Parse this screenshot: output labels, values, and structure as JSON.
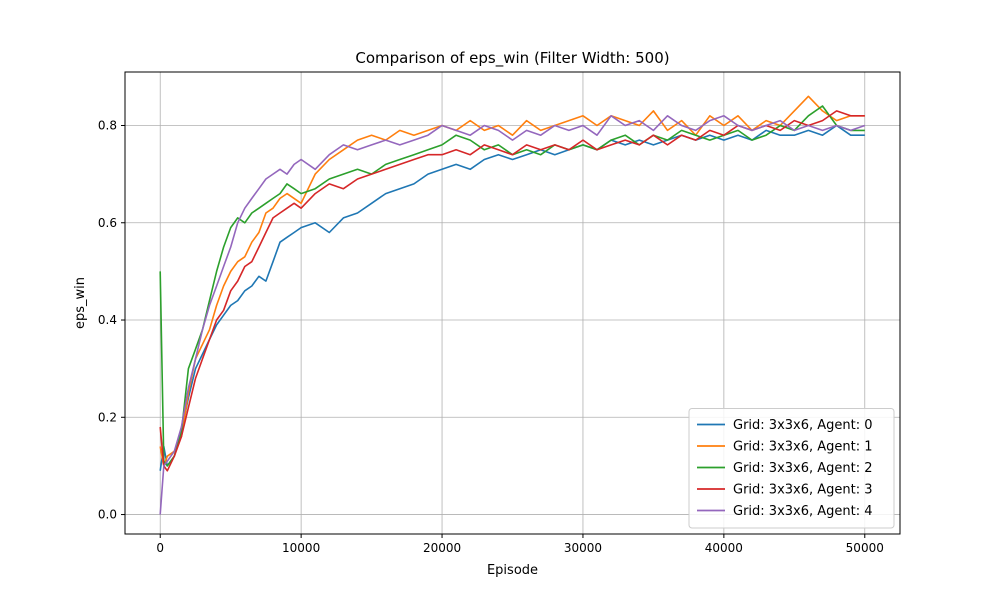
{
  "chart_data": {
    "type": "line",
    "title": "Comparison of eps_win (Filter Width: 500)",
    "xlabel": "Episode",
    "ylabel": "eps_win",
    "xlim": [
      -2500,
      52500
    ],
    "ylim": [
      -0.04,
      0.91
    ],
    "x_ticks": [
      0,
      10000,
      20000,
      30000,
      40000,
      50000
    ],
    "y_ticks": [
      0.0,
      0.2,
      0.4,
      0.6,
      0.8
    ],
    "x_tick_labels": [
      "0",
      "10000",
      "20000",
      "30000",
      "40000",
      "50000"
    ],
    "y_tick_labels": [
      "0.0",
      "0.2",
      "0.4",
      "0.6",
      "0.8"
    ],
    "grid": true,
    "legend_position": "bottom-right",
    "series": [
      {
        "name": "Grid: 3x3x6, Agent: 0",
        "color": "#1f77b4",
        "x": [
          0,
          250,
          500,
          1000,
          1500,
          2000,
          2500,
          3000,
          3500,
          4000,
          4500,
          5000,
          5500,
          6000,
          6500,
          7000,
          7500,
          8000,
          8500,
          9000,
          9500,
          10000,
          11000,
          12000,
          13000,
          14000,
          15000,
          16000,
          17000,
          18000,
          19000,
          20000,
          21000,
          22000,
          23000,
          24000,
          25000,
          26000,
          27000,
          28000,
          29000,
          30000,
          31000,
          32000,
          33000,
          34000,
          35000,
          36000,
          37000,
          38000,
          39000,
          40000,
          41000,
          42000,
          43000,
          44000,
          45000,
          46000,
          47000,
          48000,
          49000,
          50000
        ],
        "y": [
          0.09,
          0.14,
          0.1,
          0.12,
          0.17,
          0.24,
          0.3,
          0.33,
          0.36,
          0.39,
          0.41,
          0.43,
          0.44,
          0.46,
          0.47,
          0.49,
          0.48,
          0.52,
          0.56,
          0.57,
          0.58,
          0.59,
          0.6,
          0.58,
          0.61,
          0.62,
          0.64,
          0.66,
          0.67,
          0.68,
          0.7,
          0.71,
          0.72,
          0.71,
          0.73,
          0.74,
          0.73,
          0.74,
          0.75,
          0.74,
          0.75,
          0.76,
          0.75,
          0.77,
          0.76,
          0.77,
          0.76,
          0.77,
          0.78,
          0.77,
          0.78,
          0.77,
          0.78,
          0.77,
          0.79,
          0.78,
          0.78,
          0.79,
          0.78,
          0.8,
          0.78,
          0.78
        ]
      },
      {
        "name": "Grid: 3x3x6, Agent: 1",
        "color": "#ff7f0e",
        "x": [
          0,
          250,
          500,
          1000,
          1500,
          2000,
          2500,
          3000,
          3500,
          4000,
          4500,
          5000,
          5500,
          6000,
          6500,
          7000,
          7500,
          8000,
          8500,
          9000,
          9500,
          10000,
          11000,
          12000,
          13000,
          14000,
          15000,
          16000,
          17000,
          18000,
          19000,
          20000,
          21000,
          22000,
          23000,
          24000,
          25000,
          26000,
          27000,
          28000,
          29000,
          30000,
          31000,
          32000,
          33000,
          34000,
          35000,
          36000,
          37000,
          38000,
          39000,
          40000,
          41000,
          42000,
          43000,
          44000,
          45000,
          46000,
          47000,
          48000,
          49000,
          50000
        ],
        "y": [
          0.14,
          0.1,
          0.12,
          0.13,
          0.16,
          0.25,
          0.32,
          0.35,
          0.38,
          0.43,
          0.47,
          0.5,
          0.52,
          0.53,
          0.56,
          0.58,
          0.62,
          0.63,
          0.65,
          0.66,
          0.65,
          0.64,
          0.7,
          0.73,
          0.75,
          0.77,
          0.78,
          0.77,
          0.79,
          0.78,
          0.79,
          0.8,
          0.79,
          0.81,
          0.79,
          0.8,
          0.78,
          0.81,
          0.79,
          0.8,
          0.81,
          0.82,
          0.8,
          0.82,
          0.81,
          0.8,
          0.83,
          0.79,
          0.81,
          0.78,
          0.82,
          0.8,
          0.82,
          0.79,
          0.81,
          0.8,
          0.83,
          0.86,
          0.83,
          0.81,
          0.82,
          0.82
        ]
      },
      {
        "name": "Grid: 3x3x6, Agent: 2",
        "color": "#2ca02c",
        "x": [
          0,
          250,
          500,
          1000,
          1500,
          2000,
          2500,
          3000,
          3500,
          4000,
          4500,
          5000,
          5500,
          6000,
          6500,
          7000,
          7500,
          8000,
          8500,
          9000,
          9500,
          10000,
          11000,
          12000,
          13000,
          14000,
          15000,
          16000,
          17000,
          18000,
          19000,
          20000,
          21000,
          22000,
          23000,
          24000,
          25000,
          26000,
          27000,
          28000,
          29000,
          30000,
          31000,
          32000,
          33000,
          34000,
          35000,
          36000,
          37000,
          38000,
          39000,
          40000,
          41000,
          42000,
          43000,
          44000,
          45000,
          46000,
          47000,
          48000,
          49000,
          50000
        ],
        "y": [
          0.5,
          0.11,
          0.1,
          0.12,
          0.17,
          0.3,
          0.34,
          0.38,
          0.44,
          0.5,
          0.55,
          0.59,
          0.61,
          0.6,
          0.62,
          0.63,
          0.64,
          0.65,
          0.66,
          0.68,
          0.67,
          0.66,
          0.67,
          0.69,
          0.7,
          0.71,
          0.7,
          0.72,
          0.73,
          0.74,
          0.75,
          0.76,
          0.78,
          0.77,
          0.75,
          0.76,
          0.74,
          0.75,
          0.74,
          0.76,
          0.75,
          0.76,
          0.75,
          0.77,
          0.78,
          0.76,
          0.78,
          0.77,
          0.79,
          0.78,
          0.77,
          0.78,
          0.79,
          0.77,
          0.78,
          0.8,
          0.79,
          0.82,
          0.84,
          0.8,
          0.79,
          0.79
        ]
      },
      {
        "name": "Grid: 3x3x6, Agent: 3",
        "color": "#d62728",
        "x": [
          0,
          250,
          500,
          1000,
          1500,
          2000,
          2500,
          3000,
          3500,
          4000,
          4500,
          5000,
          5500,
          6000,
          6500,
          7000,
          7500,
          8000,
          8500,
          9000,
          9500,
          10000,
          11000,
          12000,
          13000,
          14000,
          15000,
          16000,
          17000,
          18000,
          19000,
          20000,
          21000,
          22000,
          23000,
          24000,
          25000,
          26000,
          27000,
          28000,
          29000,
          30000,
          31000,
          32000,
          33000,
          34000,
          35000,
          36000,
          37000,
          38000,
          39000,
          40000,
          41000,
          42000,
          43000,
          44000,
          45000,
          46000,
          47000,
          48000,
          49000,
          50000
        ],
        "y": [
          0.18,
          0.1,
          0.09,
          0.12,
          0.16,
          0.22,
          0.28,
          0.32,
          0.36,
          0.4,
          0.42,
          0.46,
          0.48,
          0.51,
          0.52,
          0.55,
          0.58,
          0.61,
          0.62,
          0.63,
          0.64,
          0.63,
          0.66,
          0.68,
          0.67,
          0.69,
          0.7,
          0.71,
          0.72,
          0.73,
          0.74,
          0.74,
          0.75,
          0.74,
          0.76,
          0.75,
          0.74,
          0.76,
          0.75,
          0.76,
          0.75,
          0.77,
          0.75,
          0.76,
          0.77,
          0.76,
          0.78,
          0.76,
          0.78,
          0.77,
          0.79,
          0.78,
          0.8,
          0.79,
          0.8,
          0.79,
          0.81,
          0.8,
          0.81,
          0.83,
          0.82,
          0.82
        ]
      },
      {
        "name": "Grid: 3x3x6, Agent: 4",
        "color": "#9467bd",
        "x": [
          0,
          250,
          500,
          1000,
          1500,
          2000,
          2500,
          3000,
          3500,
          4000,
          4500,
          5000,
          5500,
          6000,
          6500,
          7000,
          7500,
          8000,
          8500,
          9000,
          9500,
          10000,
          11000,
          12000,
          13000,
          14000,
          15000,
          16000,
          17000,
          18000,
          19000,
          20000,
          21000,
          22000,
          23000,
          24000,
          25000,
          26000,
          27000,
          28000,
          29000,
          30000,
          31000,
          32000,
          33000,
          34000,
          35000,
          36000,
          37000,
          38000,
          39000,
          40000,
          41000,
          42000,
          43000,
          44000,
          45000,
          46000,
          47000,
          48000,
          49000,
          50000
        ],
        "y": [
          0.0,
          0.1,
          0.11,
          0.13,
          0.18,
          0.26,
          0.32,
          0.38,
          0.43,
          0.47,
          0.51,
          0.55,
          0.6,
          0.63,
          0.65,
          0.67,
          0.69,
          0.7,
          0.71,
          0.7,
          0.72,
          0.73,
          0.71,
          0.74,
          0.76,
          0.75,
          0.76,
          0.77,
          0.76,
          0.77,
          0.78,
          0.8,
          0.79,
          0.78,
          0.8,
          0.79,
          0.77,
          0.79,
          0.78,
          0.8,
          0.79,
          0.8,
          0.78,
          0.82,
          0.8,
          0.81,
          0.79,
          0.82,
          0.8,
          0.79,
          0.81,
          0.82,
          0.8,
          0.79,
          0.8,
          0.81,
          0.79,
          0.8,
          0.79,
          0.8,
          0.79,
          0.8
        ]
      }
    ]
  }
}
